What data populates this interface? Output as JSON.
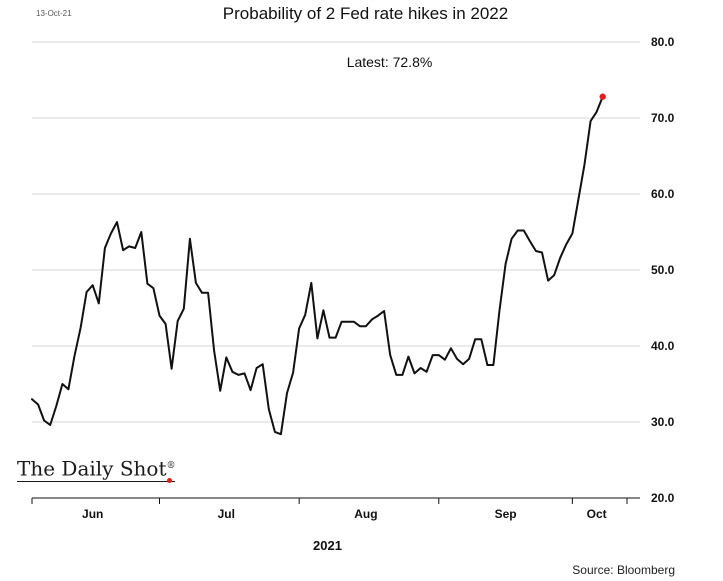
{
  "header": {
    "date_stamp": "13-Oct-21",
    "latest_text": "Latest:  72.8%"
  },
  "branding": {
    "logo_text": "The Daily Shot",
    "logo_mark": "®",
    "source_text": "Source: Bloomberg"
  },
  "colors": {
    "line": "#111111",
    "marker": "#e0201c",
    "grid": "#c8c8c8"
  },
  "chart_data": {
    "type": "line",
    "title": "Probability of 2 Fed rate hikes in 2022",
    "xlabel": "2021",
    "ylabel": "",
    "ylim": [
      20,
      80
    ],
    "yticks": [
      20,
      30,
      40,
      50,
      60,
      70,
      80
    ],
    "ytick_labels": [
      "20.0",
      "30.0",
      "40.0",
      "50.0",
      "60.0",
      "70.0",
      "80.0"
    ],
    "x_range": [
      0,
      98
    ],
    "xtick_positions": [
      10,
      32,
      55,
      78,
      93
    ],
    "xtick_labels": [
      "Jun",
      "Jul",
      "Aug",
      "Sep",
      "Oct"
    ],
    "minor_tick_positions": [
      0,
      21,
      44,
      67,
      89,
      98
    ],
    "grid": true,
    "series": [
      {
        "name": "Probability of 2 Fed rate hikes in 2022",
        "values": [
          33,
          32.3,
          30.2,
          29.6,
          32.1,
          35,
          34.3,
          38.7,
          42.4,
          47.1,
          48,
          45.6,
          52.9,
          54.8,
          56.3,
          52.6,
          53.1,
          52.9,
          55,
          48.2,
          47.6,
          44,
          42.9,
          37,
          43.3,
          44.9,
          54.1,
          48.3,
          47,
          47,
          39.4,
          34.1,
          38.5,
          36.6,
          36.2,
          36.4,
          34.2,
          37.1,
          37.6,
          31.7,
          28.7,
          28.4,
          33.8,
          36.5,
          42.3,
          44.1,
          48.3,
          41,
          44.7,
          41.1,
          41.1,
          43.2,
          43.2,
          43.2,
          42.6,
          42.6,
          43.5,
          44,
          44.6,
          38.8,
          36.2,
          36.2,
          38.6,
          36.4,
          37.1,
          36.6,
          38.8,
          38.8,
          38.2,
          39.7,
          38.3,
          37.6,
          38.3,
          40.9,
          40.9,
          37.5,
          37.5,
          44.7,
          50.8,
          54.1,
          55.2,
          55.2,
          53.8,
          52.5,
          52.3,
          48.6,
          49.3,
          51.6,
          53.4,
          54.8,
          59.3,
          63.9,
          69.6,
          70.8,
          72.8
        ]
      }
    ],
    "highlight_last_point": true,
    "annotation": "Latest:  72.8%"
  }
}
